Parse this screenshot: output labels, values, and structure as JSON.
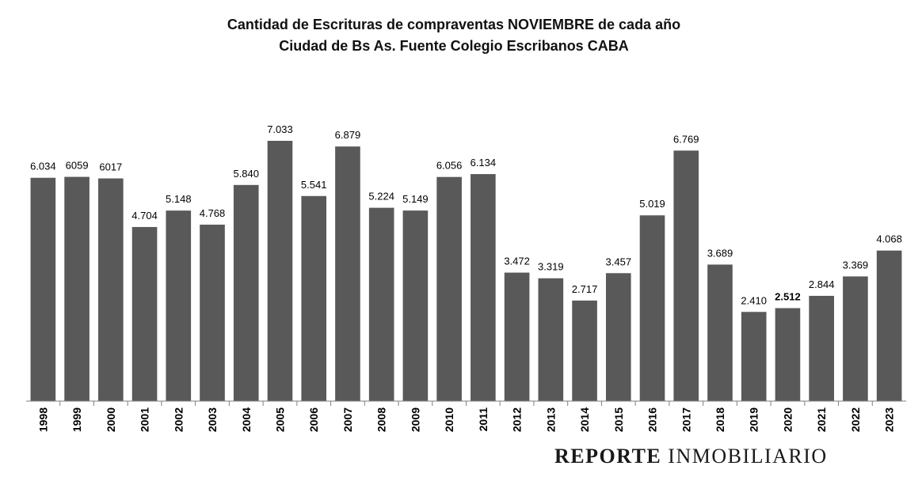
{
  "chart_data": {
    "type": "bar",
    "title": "Cantidad de Escrituras de compraventas NOVIEMBRE de cada año",
    "subtitle": "Ciudad de Bs As. Fuente Colegio Escribanos CABA",
    "xlabel": "",
    "ylabel": "",
    "categories": [
      "1998",
      "1999",
      "2000",
      "2001",
      "2002",
      "2003",
      "2004",
      "2005",
      "2006",
      "2007",
      "2008",
      "2009",
      "2010",
      "2011",
      "2012",
      "2013",
      "2014",
      "2015",
      "2016",
      "2017",
      "2018",
      "2019",
      "2020",
      "2021",
      "2022",
      "2023"
    ],
    "values": [
      6034,
      6059,
      6017,
      4704,
      5148,
      4768,
      5840,
      7033,
      5541,
      6879,
      5224,
      5149,
      6056,
      6134,
      3472,
      3319,
      2717,
      3457,
      5019,
      6769,
      3689,
      2410,
      2512,
      2844,
      3369,
      4068
    ],
    "data_labels": [
      "6.034",
      "6059",
      "6017",
      "4.704",
      "5.148",
      "4.768",
      "5.840",
      "7.033",
      "5.541",
      "6.879",
      "5.224",
      "5.149",
      "6.056",
      "6.134",
      "3.472",
      "3.319",
      "2.717",
      "3.457",
      "5.019",
      "6.769",
      "3.689",
      "2.410",
      "2.512",
      "2.844",
      "3.369",
      "4.068"
    ],
    "bold_label_index": 22,
    "ylim": [
      0,
      7500
    ],
    "grid": false,
    "bar_color": "#595959",
    "axis_color": "#7f7f7f"
  },
  "watermark": {
    "bold_part": "REPORTE",
    "light_part": "INMOBILIARIO"
  }
}
